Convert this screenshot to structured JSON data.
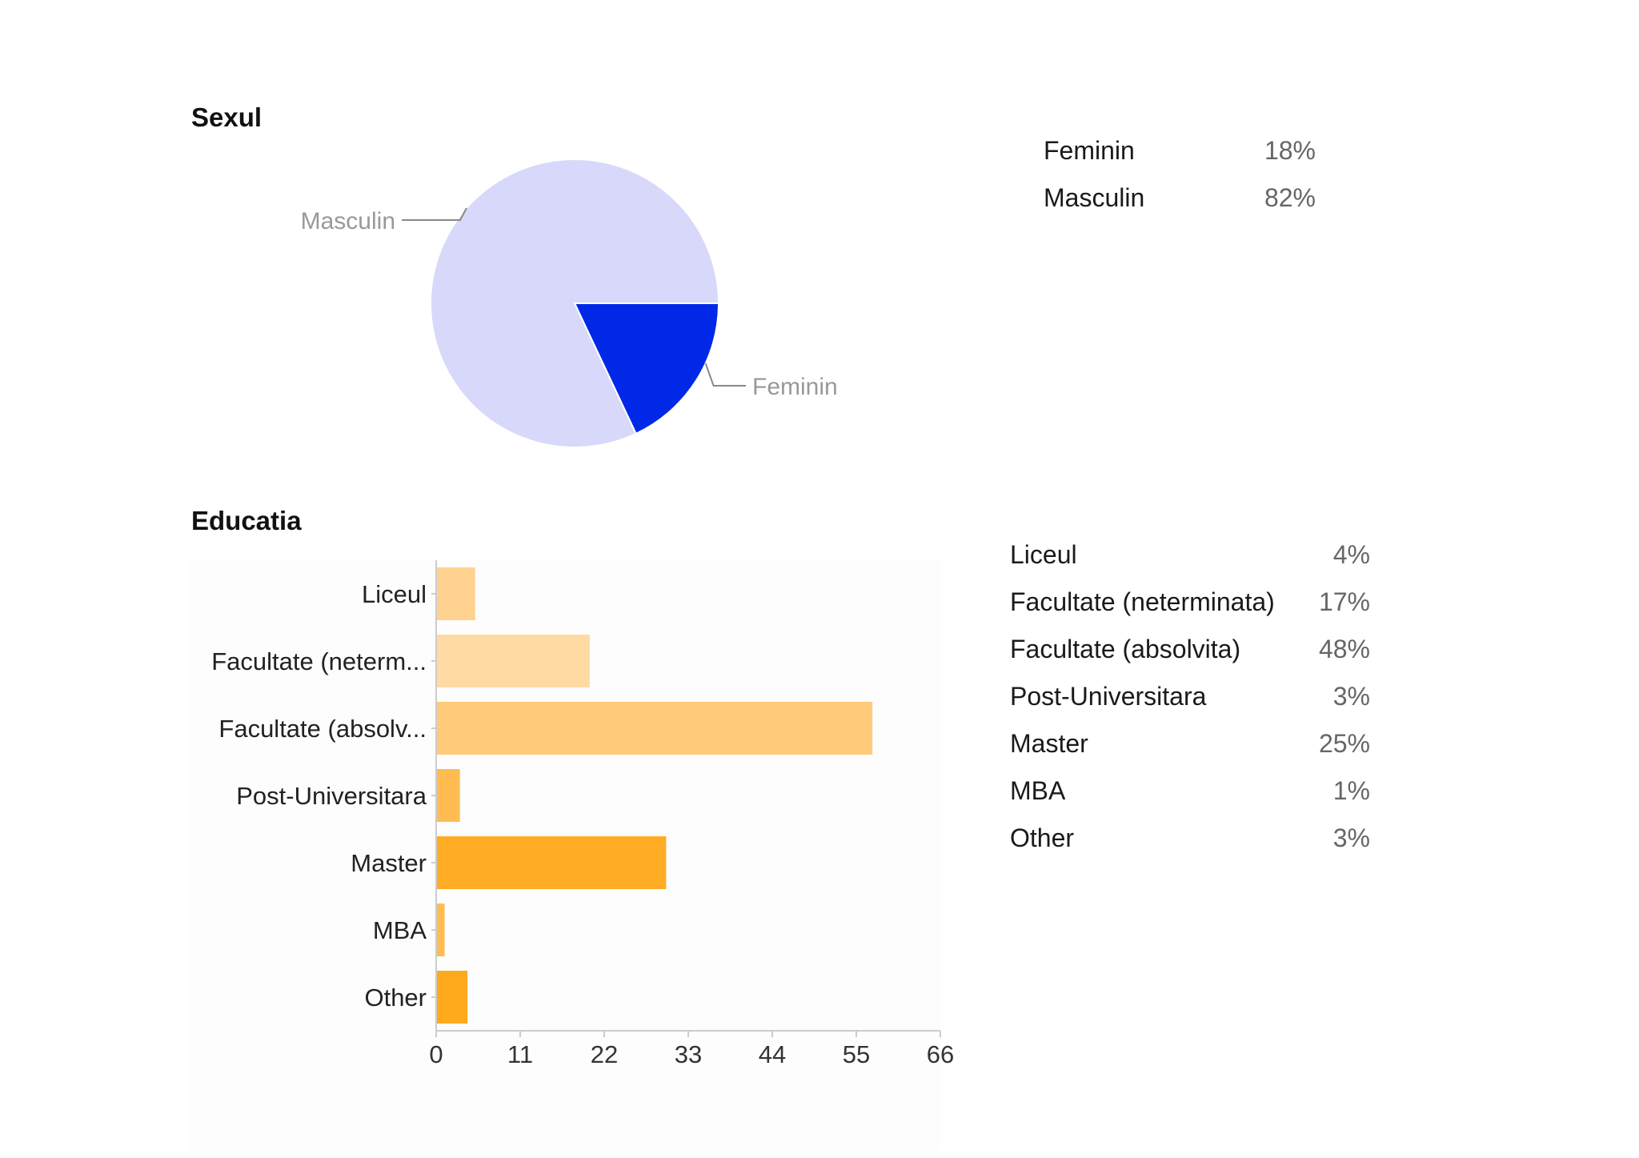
{
  "sexul": {
    "title": "Sexul",
    "table": [
      {
        "label": "Feminin",
        "value": "18%"
      },
      {
        "label": "Masculin",
        "value": "82%"
      }
    ]
  },
  "educatia": {
    "title": "Educatia",
    "table": [
      {
        "label": "Liceul",
        "value": "4%"
      },
      {
        "label": "Facultate (neterminata)",
        "value": "17%"
      },
      {
        "label": "Facultate (absolvita)",
        "value": "48%"
      },
      {
        "label": "Post-Universitara",
        "value": "3%"
      },
      {
        "label": "Master",
        "value": "25%"
      },
      {
        "label": "MBA",
        "value": "1%"
      },
      {
        "label": "Other",
        "value": "3%"
      }
    ]
  },
  "colors": {
    "masculin": "#d8d8fa",
    "feminin": "#0028e6",
    "leader": "#888888",
    "bar_shades": [
      "#ffd28f",
      "#ffdba3",
      "#ffca7a",
      "#ffbc50",
      "#ffac24",
      "#ffbc50",
      "#ffa91c"
    ],
    "axis": "#cccccc"
  },
  "chart_data": [
    {
      "type": "pie",
      "title": "Sexul",
      "slices": [
        {
          "label": "Feminin",
          "value": 18
        },
        {
          "label": "Masculin",
          "value": 82
        }
      ]
    },
    {
      "type": "bar",
      "orientation": "horizontal",
      "title": "Educatia",
      "categories": [
        "Liceul",
        "Facultate (neterm...",
        "Facultate (absolv...",
        "Post-Universitara",
        "Master",
        "MBA",
        "Other"
      ],
      "values": [
        5,
        20,
        57,
        3,
        30,
        1,
        4
      ],
      "xticks": [
        0,
        11,
        22,
        33,
        44,
        55,
        66
      ],
      "xlim": [
        0,
        66
      ],
      "grid": false
    }
  ]
}
